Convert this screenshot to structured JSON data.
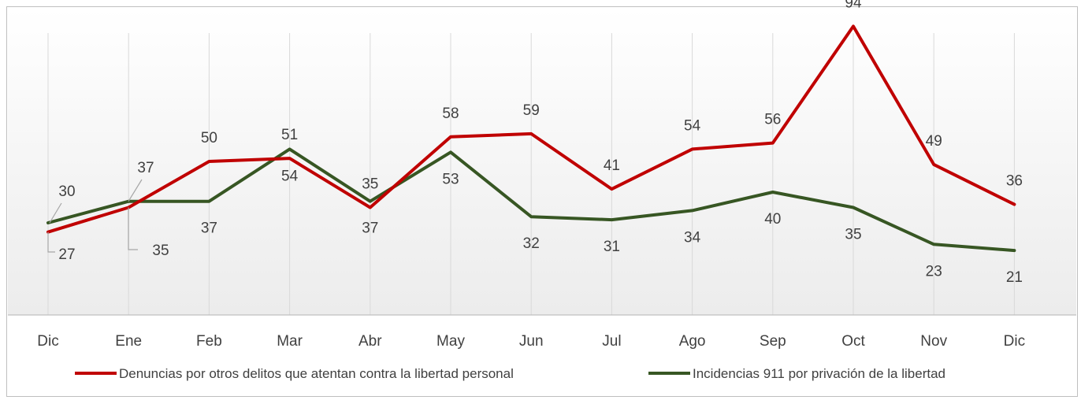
{
  "chart_data": {
    "type": "line",
    "title": "",
    "xlabel": "",
    "ylabel": "",
    "categories": [
      "Dic",
      "Ene",
      "Feb",
      "Mar",
      "Abr",
      "May",
      "Jun",
      "Jul",
      "Ago",
      "Sep",
      "Oct",
      "Nov",
      "Dic"
    ],
    "ylim": [
      0,
      100
    ],
    "grid": "vertical",
    "legend_position": "bottom",
    "series": [
      {
        "name": "Denuncias por otros delitos que atentan contra la libertad personal",
        "color": "#c00000",
        "values": [
          27,
          35,
          50,
          51,
          35,
          58,
          59,
          41,
          54,
          56,
          94,
          49,
          36
        ]
      },
      {
        "name": "Incidencias 911 por privación de la libertad",
        "color": "#375623",
        "values": [
          30,
          37,
          37,
          54,
          37,
          53,
          32,
          31,
          34,
          40,
          35,
          23,
          21
        ]
      }
    ]
  }
}
